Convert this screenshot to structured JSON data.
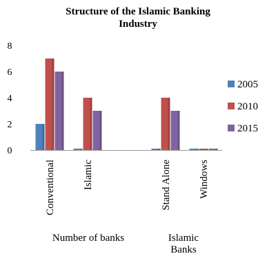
{
  "chart_data": {
    "type": "bar",
    "title": "Structure of the Islamic Banking\nIndustry",
    "categories": [
      "Conventional",
      "Islamic",
      "Stand Alone",
      "Windows"
    ],
    "groups": [
      {
        "label": "Number of banks",
        "categories": [
          "Conventional",
          "Islamic"
        ]
      },
      {
        "label": "Islamic\nBanks",
        "categories": [
          "Stand Alone",
          "Windows"
        ]
      }
    ],
    "series": [
      {
        "name": "2005",
        "color": "#4f81bd",
        "values": [
          2,
          0,
          0,
          0
        ]
      },
      {
        "name": "2010",
        "color": "#c0504d",
        "values": [
          7,
          4,
          4,
          0
        ]
      },
      {
        "name": "2015",
        "color": "#8064a2",
        "values": [
          6,
          3,
          3,
          0
        ]
      }
    ],
    "ylim": [
      0,
      8
    ],
    "yticks": [
      0,
      2,
      4,
      6,
      8
    ],
    "legend": "right",
    "grid": false
  }
}
